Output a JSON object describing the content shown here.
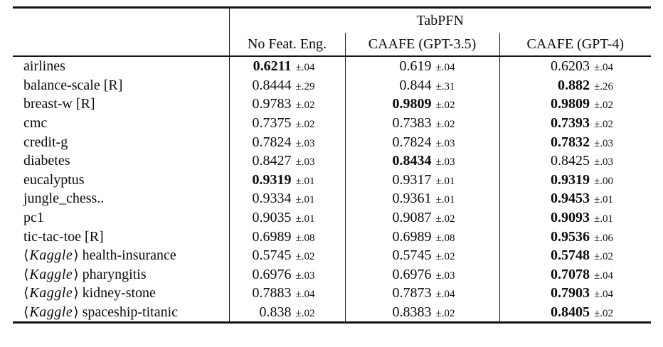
{
  "table": {
    "group_header": "TabPFN",
    "columns": [
      "No Feat. Eng.",
      "CAAFE (GPT-3.5)",
      "CAAFE (GPT-4)"
    ],
    "kaggle_prefix": "Kaggle",
    "rows": [
      {
        "dataset": "airlines",
        "kaggle": false,
        "cells": [
          {
            "value": "0.6211",
            "pm": "±.04",
            "bold": true
          },
          {
            "value": "0.619",
            "pm": "±.04",
            "bold": false
          },
          {
            "value": "0.6203",
            "pm": "±.04",
            "bold": false
          }
        ]
      },
      {
        "dataset": "balance-scale [R]",
        "kaggle": false,
        "cells": [
          {
            "value": "0.8444",
            "pm": "±.29",
            "bold": false
          },
          {
            "value": "0.844",
            "pm": "±.31",
            "bold": false
          },
          {
            "value": "0.882",
            "pm": "±.26",
            "bold": true
          }
        ]
      },
      {
        "dataset": "breast-w [R]",
        "kaggle": false,
        "cells": [
          {
            "value": "0.9783",
            "pm": "±.02",
            "bold": false
          },
          {
            "value": "0.9809",
            "pm": "±.02",
            "bold": true
          },
          {
            "value": "0.9809",
            "pm": "±.02",
            "bold": true
          }
        ]
      },
      {
        "dataset": "cmc",
        "kaggle": false,
        "cells": [
          {
            "value": "0.7375",
            "pm": "±.02",
            "bold": false
          },
          {
            "value": "0.7383",
            "pm": "±.02",
            "bold": false
          },
          {
            "value": "0.7393",
            "pm": "±.02",
            "bold": true
          }
        ]
      },
      {
        "dataset": "credit-g",
        "kaggle": false,
        "cells": [
          {
            "value": "0.7824",
            "pm": "±.03",
            "bold": false
          },
          {
            "value": "0.7824",
            "pm": "±.03",
            "bold": false
          },
          {
            "value": "0.7832",
            "pm": "±.03",
            "bold": true
          }
        ]
      },
      {
        "dataset": "diabetes",
        "kaggle": false,
        "cells": [
          {
            "value": "0.8427",
            "pm": "±.03",
            "bold": false
          },
          {
            "value": "0.8434",
            "pm": "±.03",
            "bold": true
          },
          {
            "value": "0.8425",
            "pm": "±.03",
            "bold": false
          }
        ]
      },
      {
        "dataset": "eucalyptus",
        "kaggle": false,
        "cells": [
          {
            "value": "0.9319",
            "pm": "±.01",
            "bold": true
          },
          {
            "value": "0.9317",
            "pm": "±.01",
            "bold": false
          },
          {
            "value": "0.9319",
            "pm": "±.00",
            "bold": true
          }
        ]
      },
      {
        "dataset": "jungle_chess..",
        "kaggle": false,
        "cells": [
          {
            "value": "0.9334",
            "pm": "±.01",
            "bold": false
          },
          {
            "value": "0.9361",
            "pm": "±.01",
            "bold": false
          },
          {
            "value": "0.9453",
            "pm": "±.01",
            "bold": true
          }
        ]
      },
      {
        "dataset": "pc1",
        "kaggle": false,
        "cells": [
          {
            "value": "0.9035",
            "pm": "±.01",
            "bold": false
          },
          {
            "value": "0.9087",
            "pm": "±.02",
            "bold": false
          },
          {
            "value": "0.9093",
            "pm": "±.01",
            "bold": true
          }
        ]
      },
      {
        "dataset": "tic-tac-toe [R]",
        "kaggle": false,
        "cells": [
          {
            "value": "0.6989",
            "pm": "±.08",
            "bold": false
          },
          {
            "value": "0.6989",
            "pm": "±.08",
            "bold": false
          },
          {
            "value": "0.9536",
            "pm": "±.06",
            "bold": true
          }
        ]
      },
      {
        "dataset": "health-insurance",
        "kaggle": true,
        "cells": [
          {
            "value": "0.5745",
            "pm": "±.02",
            "bold": false
          },
          {
            "value": "0.5745",
            "pm": "±.02",
            "bold": false
          },
          {
            "value": "0.5748",
            "pm": "±.02",
            "bold": true
          }
        ]
      },
      {
        "dataset": "pharyngitis",
        "kaggle": true,
        "cells": [
          {
            "value": "0.6976",
            "pm": "±.03",
            "bold": false
          },
          {
            "value": "0.6976",
            "pm": "±.03",
            "bold": false
          },
          {
            "value": "0.7078",
            "pm": "±.04",
            "bold": true
          }
        ]
      },
      {
        "dataset": "kidney-stone",
        "kaggle": true,
        "cells": [
          {
            "value": "0.7883",
            "pm": "±.04",
            "bold": false
          },
          {
            "value": "0.7873",
            "pm": "±.04",
            "bold": false
          },
          {
            "value": "0.7903",
            "pm": "±.04",
            "bold": true
          }
        ]
      },
      {
        "dataset": "spaceship-titanic",
        "kaggle": true,
        "cells": [
          {
            "value": "0.838",
            "pm": "±.02",
            "bold": false
          },
          {
            "value": "0.8383",
            "pm": "±.02",
            "bold": false
          },
          {
            "value": "0.8405",
            "pm": "±.02",
            "bold": true
          }
        ]
      }
    ]
  }
}
